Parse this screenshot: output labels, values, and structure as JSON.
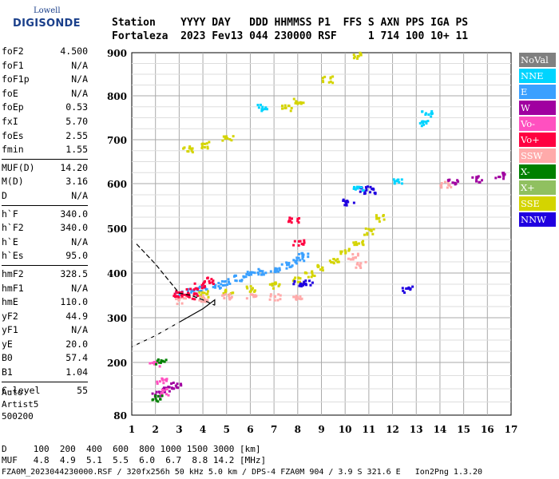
{
  "logo": {
    "top": "Lowell",
    "bottom": "DIGISONDE"
  },
  "header": {
    "line1": "Station    YYYY DAY   DDD HHMMSS P1  FFS S AXN PPS IGA PS",
    "line2": "Fortaleza  2023 Fev13 044 230000 RSF     1 714 100 10+ 11"
  },
  "params": {
    "group1": [
      [
        "foF2",
        "4.500"
      ],
      [
        "foF1",
        "N/A"
      ],
      [
        "foF1p",
        "N/A"
      ],
      [
        "foE",
        "N/A"
      ],
      [
        "foEp",
        "0.53"
      ],
      [
        "fxI",
        "5.70"
      ],
      [
        "foEs",
        "2.55"
      ],
      [
        "fmin",
        "1.55"
      ]
    ],
    "group2": [
      [
        "MUF(D)",
        "14.20"
      ],
      [
        "M(D)",
        "3.16"
      ],
      [
        "D",
        "N/A"
      ]
    ],
    "group3": [
      [
        "h`F",
        "340.0"
      ],
      [
        "h`F2",
        "340.0"
      ],
      [
        "h`E",
        "N/A"
      ],
      [
        "h`Es",
        "95.0"
      ]
    ],
    "group4": [
      [
        "hmF2",
        "328.5"
      ],
      [
        "hmF1",
        "N/A"
      ],
      [
        "hmE",
        "110.0"
      ],
      [
        "yF2",
        "44.9"
      ],
      [
        "yF1",
        "N/A"
      ],
      [
        "yE",
        "20.0"
      ],
      [
        "B0",
        "57.4"
      ],
      [
        "B1",
        "1.04"
      ]
    ],
    "group5": [
      [
        "C-level",
        "55"
      ]
    ]
  },
  "auto": {
    "l1": "Auto:",
    "l2": "Artist5",
    "l3": "500200"
  },
  "footer": {
    "d_row": "D     100  200  400  600  800 1000 1500 3000 [km]",
    "muf_row": "MUF   4.8  4.9  5.1  5.5  6.0  6.7  8.8 14.2 [MHz]",
    "filename": "FZA0M_2023044230000.RSF / 320fx256h 50 kHz 5.0 km / DPS-4 FZA0M 904 / 3.9 S 321.6 E   Ion2Png 1.3.20"
  },
  "legend": [
    {
      "label": "NoVal",
      "color": "#808080"
    },
    {
      "label": "NNE",
      "color": "#00d4ff"
    },
    {
      "label": "E",
      "color": "#3aa0ff"
    },
    {
      "label": "W",
      "color": "#a000a0"
    },
    {
      "label": "Vo-",
      "color": "#ff50c0"
    },
    {
      "label": "Vo+",
      "color": "#ff0040"
    },
    {
      "label": "SSW",
      "color": "#ffaaaa"
    },
    {
      "label": "X-",
      "color": "#008000"
    },
    {
      "label": "X+",
      "color": "#90c060"
    },
    {
      "label": "SSE",
      "color": "#d4d400"
    },
    {
      "label": "NNW",
      "color": "#2000e0"
    }
  ],
  "chart_data": {
    "type": "scatter",
    "xlabel": "",
    "ylabel": "",
    "xlim": [
      1,
      17
    ],
    "ylim": [
      80,
      900
    ],
    "x_ticks": [
      1,
      2,
      3,
      4,
      5,
      6,
      7,
      8,
      9,
      10,
      11,
      12,
      13,
      14,
      15,
      16,
      17
    ],
    "y_ticks": [
      80,
      200,
      300,
      400,
      500,
      600,
      700,
      800,
      900
    ],
    "series": [
      {
        "name": "E",
        "color": "#3aa0ff",
        "points": [
          [
            3.0,
            355
          ],
          [
            3.5,
            360
          ],
          [
            4.0,
            368
          ],
          [
            4.5,
            375
          ],
          [
            5.0,
            382
          ],
          [
            5.5,
            390
          ],
          [
            6.0,
            398
          ],
          [
            6.5,
            405
          ],
          [
            7.0,
            412
          ],
          [
            7.5,
            420
          ],
          [
            8.0,
            430
          ],
          [
            8.2,
            440
          ]
        ]
      },
      {
        "name": "SSE",
        "color": "#d4d400",
        "points": [
          [
            4.0,
            355
          ],
          [
            5.0,
            360
          ],
          [
            6.0,
            367
          ],
          [
            7.0,
            375
          ],
          [
            8.0,
            385
          ],
          [
            8.5,
            400
          ],
          [
            9.0,
            415
          ],
          [
            9.5,
            430
          ],
          [
            10.0,
            450
          ],
          [
            10.5,
            470
          ],
          [
            11.0,
            495
          ],
          [
            11.5,
            525
          ],
          [
            3.3,
            680
          ],
          [
            4.0,
            690
          ],
          [
            5.0,
            705
          ],
          [
            7.5,
            775
          ],
          [
            8.0,
            790
          ],
          [
            9.2,
            840
          ],
          [
            10.5,
            895
          ]
        ]
      },
      {
        "name": "SSW",
        "color": "#ffaaaa",
        "points": [
          [
            3.0,
            340
          ],
          [
            4.0,
            345
          ],
          [
            5.0,
            350
          ],
          [
            6.0,
            350
          ],
          [
            7.0,
            348
          ],
          [
            8.0,
            345
          ],
          [
            10.3,
            440
          ],
          [
            10.6,
            420
          ],
          [
            14.2,
            600
          ]
        ]
      },
      {
        "name": "Vo+",
        "color": "#ff0040",
        "points": [
          [
            2.9,
            355
          ],
          [
            3.2,
            360
          ],
          [
            3.5,
            350
          ],
          [
            3.8,
            372
          ],
          [
            4.2,
            385
          ],
          [
            7.8,
            520
          ],
          [
            8.0,
            470
          ]
        ]
      },
      {
        "name": "W",
        "color": "#a000a0",
        "points": [
          [
            2.0,
            130
          ],
          [
            2.5,
            140
          ],
          [
            2.8,
            150
          ],
          [
            14.5,
            605
          ],
          [
            15.5,
            612
          ],
          [
            16.5,
            620
          ]
        ]
      },
      {
        "name": "NNW",
        "color": "#2000e0",
        "points": [
          [
            8.0,
            380
          ],
          [
            8.4,
            380
          ],
          [
            10.1,
            560
          ],
          [
            10.8,
            590
          ],
          [
            11.0,
            585
          ],
          [
            12.6,
            365
          ]
        ]
      },
      {
        "name": "NNE",
        "color": "#00d4ff",
        "points": [
          [
            6.5,
            775
          ],
          [
            13.4,
            760
          ],
          [
            13.3,
            740
          ],
          [
            12.2,
            610
          ],
          [
            10.5,
            590
          ]
        ]
      },
      {
        "name": "Vo-",
        "color": "#ff50c0",
        "points": [
          [
            1.9,
            200
          ],
          [
            2.2,
            160
          ],
          [
            2.4,
            135
          ]
        ]
      },
      {
        "name": "X-",
        "color": "#008000",
        "points": [
          [
            2.0,
            120
          ],
          [
            2.2,
            202
          ]
        ]
      }
    ],
    "profile": [
      [
        1.2,
        465
      ],
      [
        2.0,
        420
      ],
      [
        3.0,
        355
      ],
      [
        3.5,
        350
      ],
      [
        4.0,
        340
      ],
      [
        4.5,
        328
      ],
      [
        4.5,
        340
      ],
      [
        4.0,
        320
      ],
      [
        3.0,
        290
      ],
      [
        2.0,
        260
      ],
      [
        1.0,
        235
      ]
    ]
  }
}
